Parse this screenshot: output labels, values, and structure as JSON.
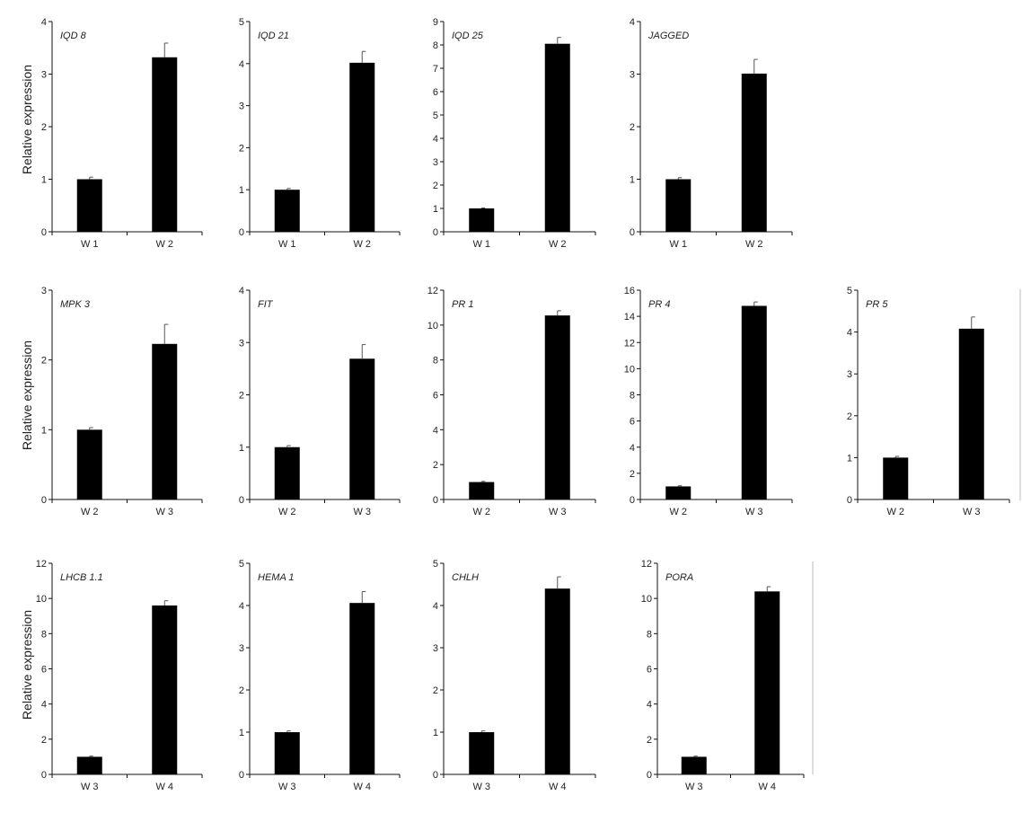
{
  "ylabel": "Relative expression",
  "chart_data": [
    {
      "type": "bar",
      "title": "IQD 8",
      "categories": [
        "W 1",
        "W 2"
      ],
      "values": [
        1.0,
        3.32
      ],
      "errors": [
        0.04,
        0.27
      ],
      "ylim": [
        0,
        4
      ],
      "yticks": [
        0,
        1,
        2,
        3,
        4
      ]
    },
    {
      "type": "bar",
      "title": "IQD 21",
      "categories": [
        "W 1",
        "W 2"
      ],
      "values": [
        1.0,
        4.02
      ],
      "errors": [
        0.03,
        0.27
      ],
      "ylim": [
        0,
        5
      ],
      "yticks": [
        0,
        1,
        2,
        3,
        4,
        5
      ]
    },
    {
      "type": "bar",
      "title": "IQD 25",
      "categories": [
        "W 1",
        "W 2"
      ],
      "values": [
        1.0,
        8.05
      ],
      "errors": [
        0.02,
        0.27
      ],
      "ylim": [
        0,
        9
      ],
      "yticks": [
        0,
        1,
        2,
        3,
        4,
        5,
        6,
        7,
        8,
        9
      ]
    },
    {
      "type": "bar",
      "title": "JAGGED",
      "categories": [
        "W 1",
        "W 2"
      ],
      "values": [
        1.0,
        3.01
      ],
      "errors": [
        0.03,
        0.27
      ],
      "ylim": [
        0,
        4
      ],
      "yticks": [
        0,
        1,
        2,
        3,
        4
      ]
    },
    {
      "type": "bar",
      "title": "MPK 3",
      "categories": [
        "W 2",
        "W 3"
      ],
      "values": [
        1.0,
        2.23
      ],
      "errors": [
        0.03,
        0.28
      ],
      "ylim": [
        0,
        3
      ],
      "yticks": [
        0,
        1,
        2,
        3
      ]
    },
    {
      "type": "bar",
      "title": "FIT",
      "categories": [
        "W 2",
        "W 3"
      ],
      "values": [
        1.0,
        2.69
      ],
      "errors": [
        0.03,
        0.27
      ],
      "ylim": [
        0,
        4
      ],
      "yticks": [
        0,
        1,
        2,
        3,
        4
      ]
    },
    {
      "type": "bar",
      "title": "PR 1",
      "categories": [
        "W 2",
        "W 3"
      ],
      "values": [
        1.0,
        10.55
      ],
      "errors": [
        0.04,
        0.27
      ],
      "ylim": [
        0,
        12
      ],
      "yticks": [
        0,
        2,
        4,
        6,
        8,
        10,
        12
      ]
    },
    {
      "type": "bar",
      "title": "PR 4",
      "categories": [
        "W 2",
        "W 3"
      ],
      "values": [
        1.0,
        14.8
      ],
      "errors": [
        0.05,
        0.3
      ],
      "ylim": [
        0,
        16
      ],
      "yticks": [
        0,
        2,
        4,
        6,
        8,
        10,
        12,
        14,
        16
      ]
    },
    {
      "type": "bar",
      "title": "PR 5",
      "categories": [
        "W 2",
        "W 3"
      ],
      "values": [
        1.0,
        4.08
      ],
      "errors": [
        0.03,
        0.28
      ],
      "ylim": [
        0,
        5
      ],
      "yticks": [
        0,
        1,
        2,
        3,
        4,
        5
      ]
    },
    {
      "type": "bar",
      "title": "LHCB 1.1",
      "categories": [
        "W 3",
        "W 4"
      ],
      "values": [
        1.0,
        9.6
      ],
      "errors": [
        0.04,
        0.27
      ],
      "ylim": [
        0,
        12
      ],
      "yticks": [
        0,
        2,
        4,
        6,
        8,
        10,
        12
      ]
    },
    {
      "type": "bar",
      "title": "HEMA 1",
      "categories": [
        "W 3",
        "W 4"
      ],
      "values": [
        1.0,
        4.06
      ],
      "errors": [
        0.03,
        0.27
      ],
      "ylim": [
        0,
        5
      ],
      "yticks": [
        0,
        1,
        2,
        3,
        4,
        5
      ]
    },
    {
      "type": "bar",
      "title": "CHLH",
      "categories": [
        "W 3",
        "W 4"
      ],
      "values": [
        1.0,
        4.4
      ],
      "errors": [
        0.03,
        0.28
      ],
      "ylim": [
        0,
        5
      ],
      "yticks": [
        0,
        1,
        2,
        3,
        4,
        5
      ]
    },
    {
      "type": "bar",
      "title": "PORA",
      "categories": [
        "W 3",
        "W 4"
      ],
      "values": [
        1.0,
        10.4
      ],
      "errors": [
        0.04,
        0.27
      ],
      "ylim": [
        0,
        12
      ],
      "yticks": [
        0,
        2,
        4,
        6,
        8,
        10,
        12
      ]
    }
  ]
}
